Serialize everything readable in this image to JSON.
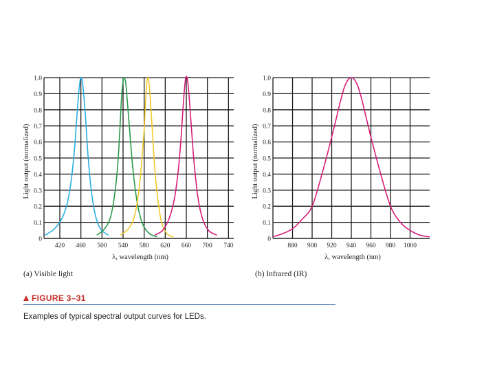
{
  "chart_data": [
    {
      "type": "line",
      "xlabel": "λ, wavelength (nm)",
      "ylabel": "Light output (normalized)",
      "xlim": [
        390,
        750
      ],
      "ylim": [
        0,
        1.0
      ],
      "x_ticks": [
        "420",
        "460",
        "500",
        "540",
        "580",
        "620",
        "660",
        "700",
        "740"
      ],
      "x_tick_values": [
        420,
        460,
        500,
        540,
        580,
        620,
        660,
        700,
        740
      ],
      "y_ticks": [
        "0",
        "0.1",
        "0.2",
        "0.3",
        "0.4",
        "0.5",
        "0.6",
        "0.7",
        "0.8",
        "0.9",
        "1.0"
      ],
      "y_tick_values": [
        0,
        0.1,
        0.2,
        0.3,
        0.4,
        0.5,
        0.6,
        0.7,
        0.8,
        0.9,
        1.0
      ],
      "grid": true,
      "series": [
        {
          "color": "#29aee0",
          "x": [
            392,
            410,
            425,
            435,
            442,
            448,
            452,
            456,
            459,
            462,
            465,
            469,
            473,
            479,
            487,
            497,
            512
          ],
          "y": [
            0.02,
            0.06,
            0.13,
            0.23,
            0.37,
            0.56,
            0.74,
            0.91,
            0.99,
            0.99,
            0.91,
            0.74,
            0.54,
            0.32,
            0.15,
            0.06,
            0.02
          ]
        },
        {
          "color": "#2a9a4a",
          "x": [
            490,
            505,
            516,
            524,
            530,
            534,
            537,
            540,
            542,
            545,
            548,
            553,
            559,
            567,
            577,
            590,
            605
          ],
          "y": [
            0.02,
            0.06,
            0.13,
            0.27,
            0.46,
            0.68,
            0.87,
            0.98,
            1.0,
            0.97,
            0.86,
            0.65,
            0.42,
            0.22,
            0.09,
            0.03,
            0.01
          ]
        },
        {
          "color": "#f2c928",
          "x": [
            535,
            550,
            561,
            569,
            575,
            580,
            583,
            585,
            587,
            589,
            592,
            596,
            600,
            606,
            613,
            623,
            635
          ],
          "y": [
            0.02,
            0.06,
            0.13,
            0.27,
            0.46,
            0.68,
            0.87,
            0.97,
            1.0,
            0.97,
            0.85,
            0.65,
            0.44,
            0.24,
            0.1,
            0.03,
            0.01
          ]
        },
        {
          "color": "#d61c7a",
          "x": [
            600,
            615,
            627,
            637,
            644,
            649,
            653,
            656,
            659,
            662,
            665,
            669,
            674,
            681,
            690,
            702,
            718
          ],
          "y": [
            0.02,
            0.05,
            0.12,
            0.24,
            0.4,
            0.58,
            0.77,
            0.91,
            1.0,
            0.99,
            0.9,
            0.72,
            0.5,
            0.28,
            0.13,
            0.05,
            0.02
          ]
        }
      ]
    },
    {
      "type": "line",
      "xlabel": "λ, wavelength (nm)",
      "ylabel": "Light output (normalized)",
      "xlim": [
        860,
        1020
      ],
      "ylim": [
        0,
        1.0
      ],
      "x_ticks": [
        "880",
        "900",
        "920",
        "940",
        "960",
        "980",
        "1000"
      ],
      "x_tick_values": [
        880,
        900,
        920,
        940,
        960,
        980,
        1000
      ],
      "y_ticks": [
        "0",
        "0.1",
        "0.2",
        "0.3",
        "0.4",
        "0.5",
        "0.6",
        "0.7",
        "0.8",
        "0.9",
        "1.0"
      ],
      "y_tick_values": [
        0,
        0.1,
        0.2,
        0.3,
        0.4,
        0.5,
        0.6,
        0.7,
        0.8,
        0.9,
        1.0
      ],
      "grid": true,
      "series": [
        {
          "color": "#d61c7a",
          "x": [
            860,
            870,
            880,
            890,
            900,
            910,
            920,
            930,
            935,
            940,
            945,
            950,
            960,
            970,
            980,
            990,
            1000,
            1010,
            1020
          ],
          "y": [
            0.01,
            0.03,
            0.06,
            0.12,
            0.2,
            0.4,
            0.63,
            0.88,
            0.97,
            1.0,
            0.97,
            0.88,
            0.63,
            0.4,
            0.2,
            0.1,
            0.05,
            0.02,
            0.01
          ]
        }
      ]
    }
  ],
  "captions": {
    "a": "(a) Visible light",
    "b": "(b) Infrared (IR)"
  },
  "figure": {
    "label": "FIGURE 3–31",
    "caption": "Examples of typical spectral output curves for LEDs."
  }
}
